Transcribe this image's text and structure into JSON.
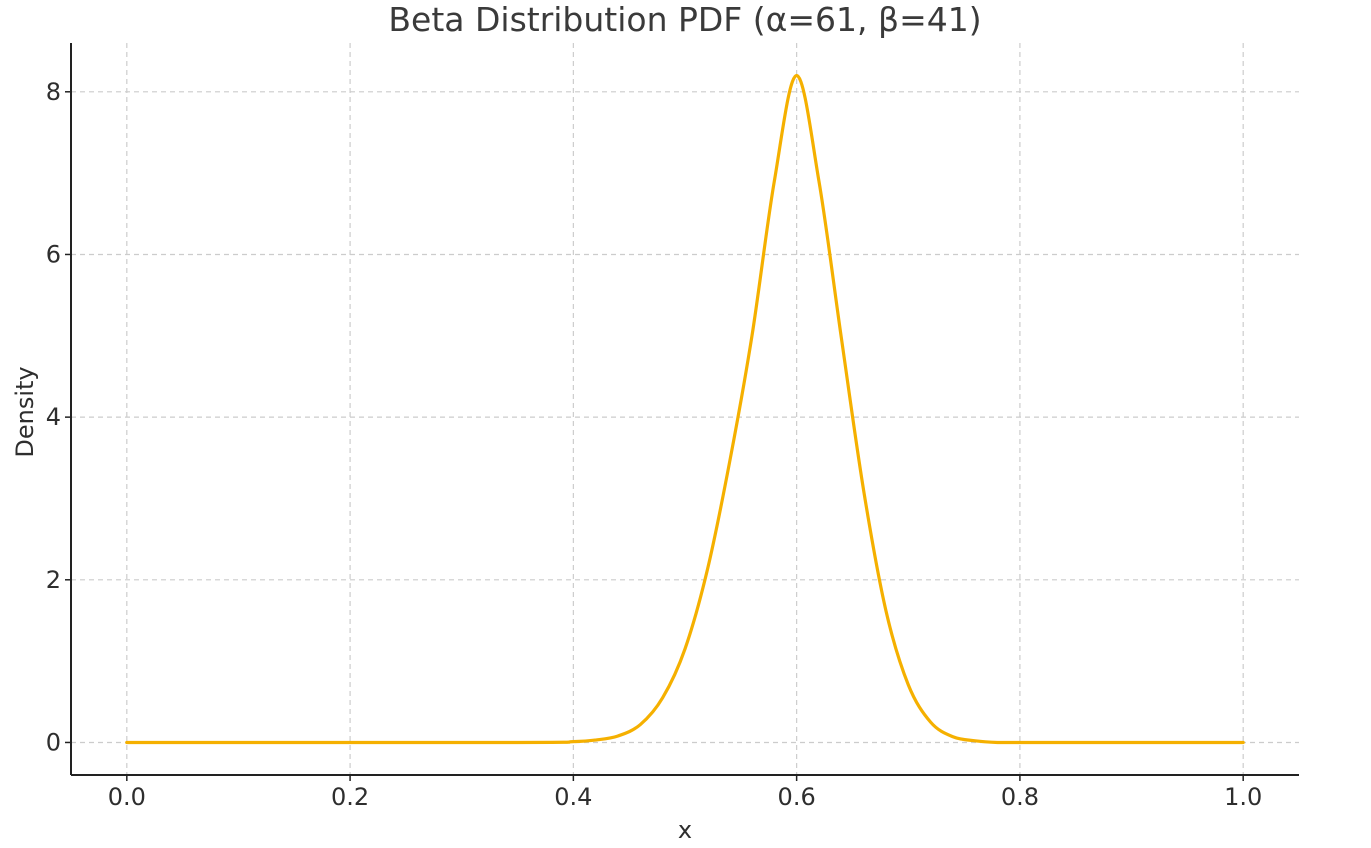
{
  "chart_data": {
    "type": "line",
    "title": "Beta Distribution PDF (α=61, β=41)",
    "xlabel": "x",
    "ylabel": "Density",
    "xlim": [
      -0.05,
      1.05
    ],
    "ylim": [
      -0.4,
      8.6
    ],
    "x_ticks": [
      0.0,
      0.2,
      0.4,
      0.6,
      0.8,
      1.0
    ],
    "x_tick_labels": [
      "0.0",
      "0.2",
      "0.4",
      "0.6",
      "0.8",
      "1.0"
    ],
    "y_ticks": [
      0,
      2,
      4,
      6,
      8
    ],
    "y_tick_labels": [
      "0",
      "2",
      "4",
      "6",
      "8"
    ],
    "grid": true,
    "series": [
      {
        "color": "#f5b000",
        "x": [
          0.0,
          0.35,
          0.4,
          0.42,
          0.44,
          0.46,
          0.48,
          0.5,
          0.52,
          0.54,
          0.56,
          0.58,
          0.6,
          0.62,
          0.64,
          0.66,
          0.68,
          0.7,
          0.72,
          0.74,
          0.76,
          0.78,
          0.8,
          1.0
        ],
        "y": [
          0.0,
          0.0,
          0.01,
          0.03,
          0.08,
          0.22,
          0.55,
          1.15,
          2.12,
          3.45,
          5.0,
          6.9,
          8.2,
          6.9,
          4.98,
          3.1,
          1.62,
          0.71,
          0.25,
          0.07,
          0.02,
          0.0,
          0.0,
          0.0
        ]
      }
    ]
  }
}
